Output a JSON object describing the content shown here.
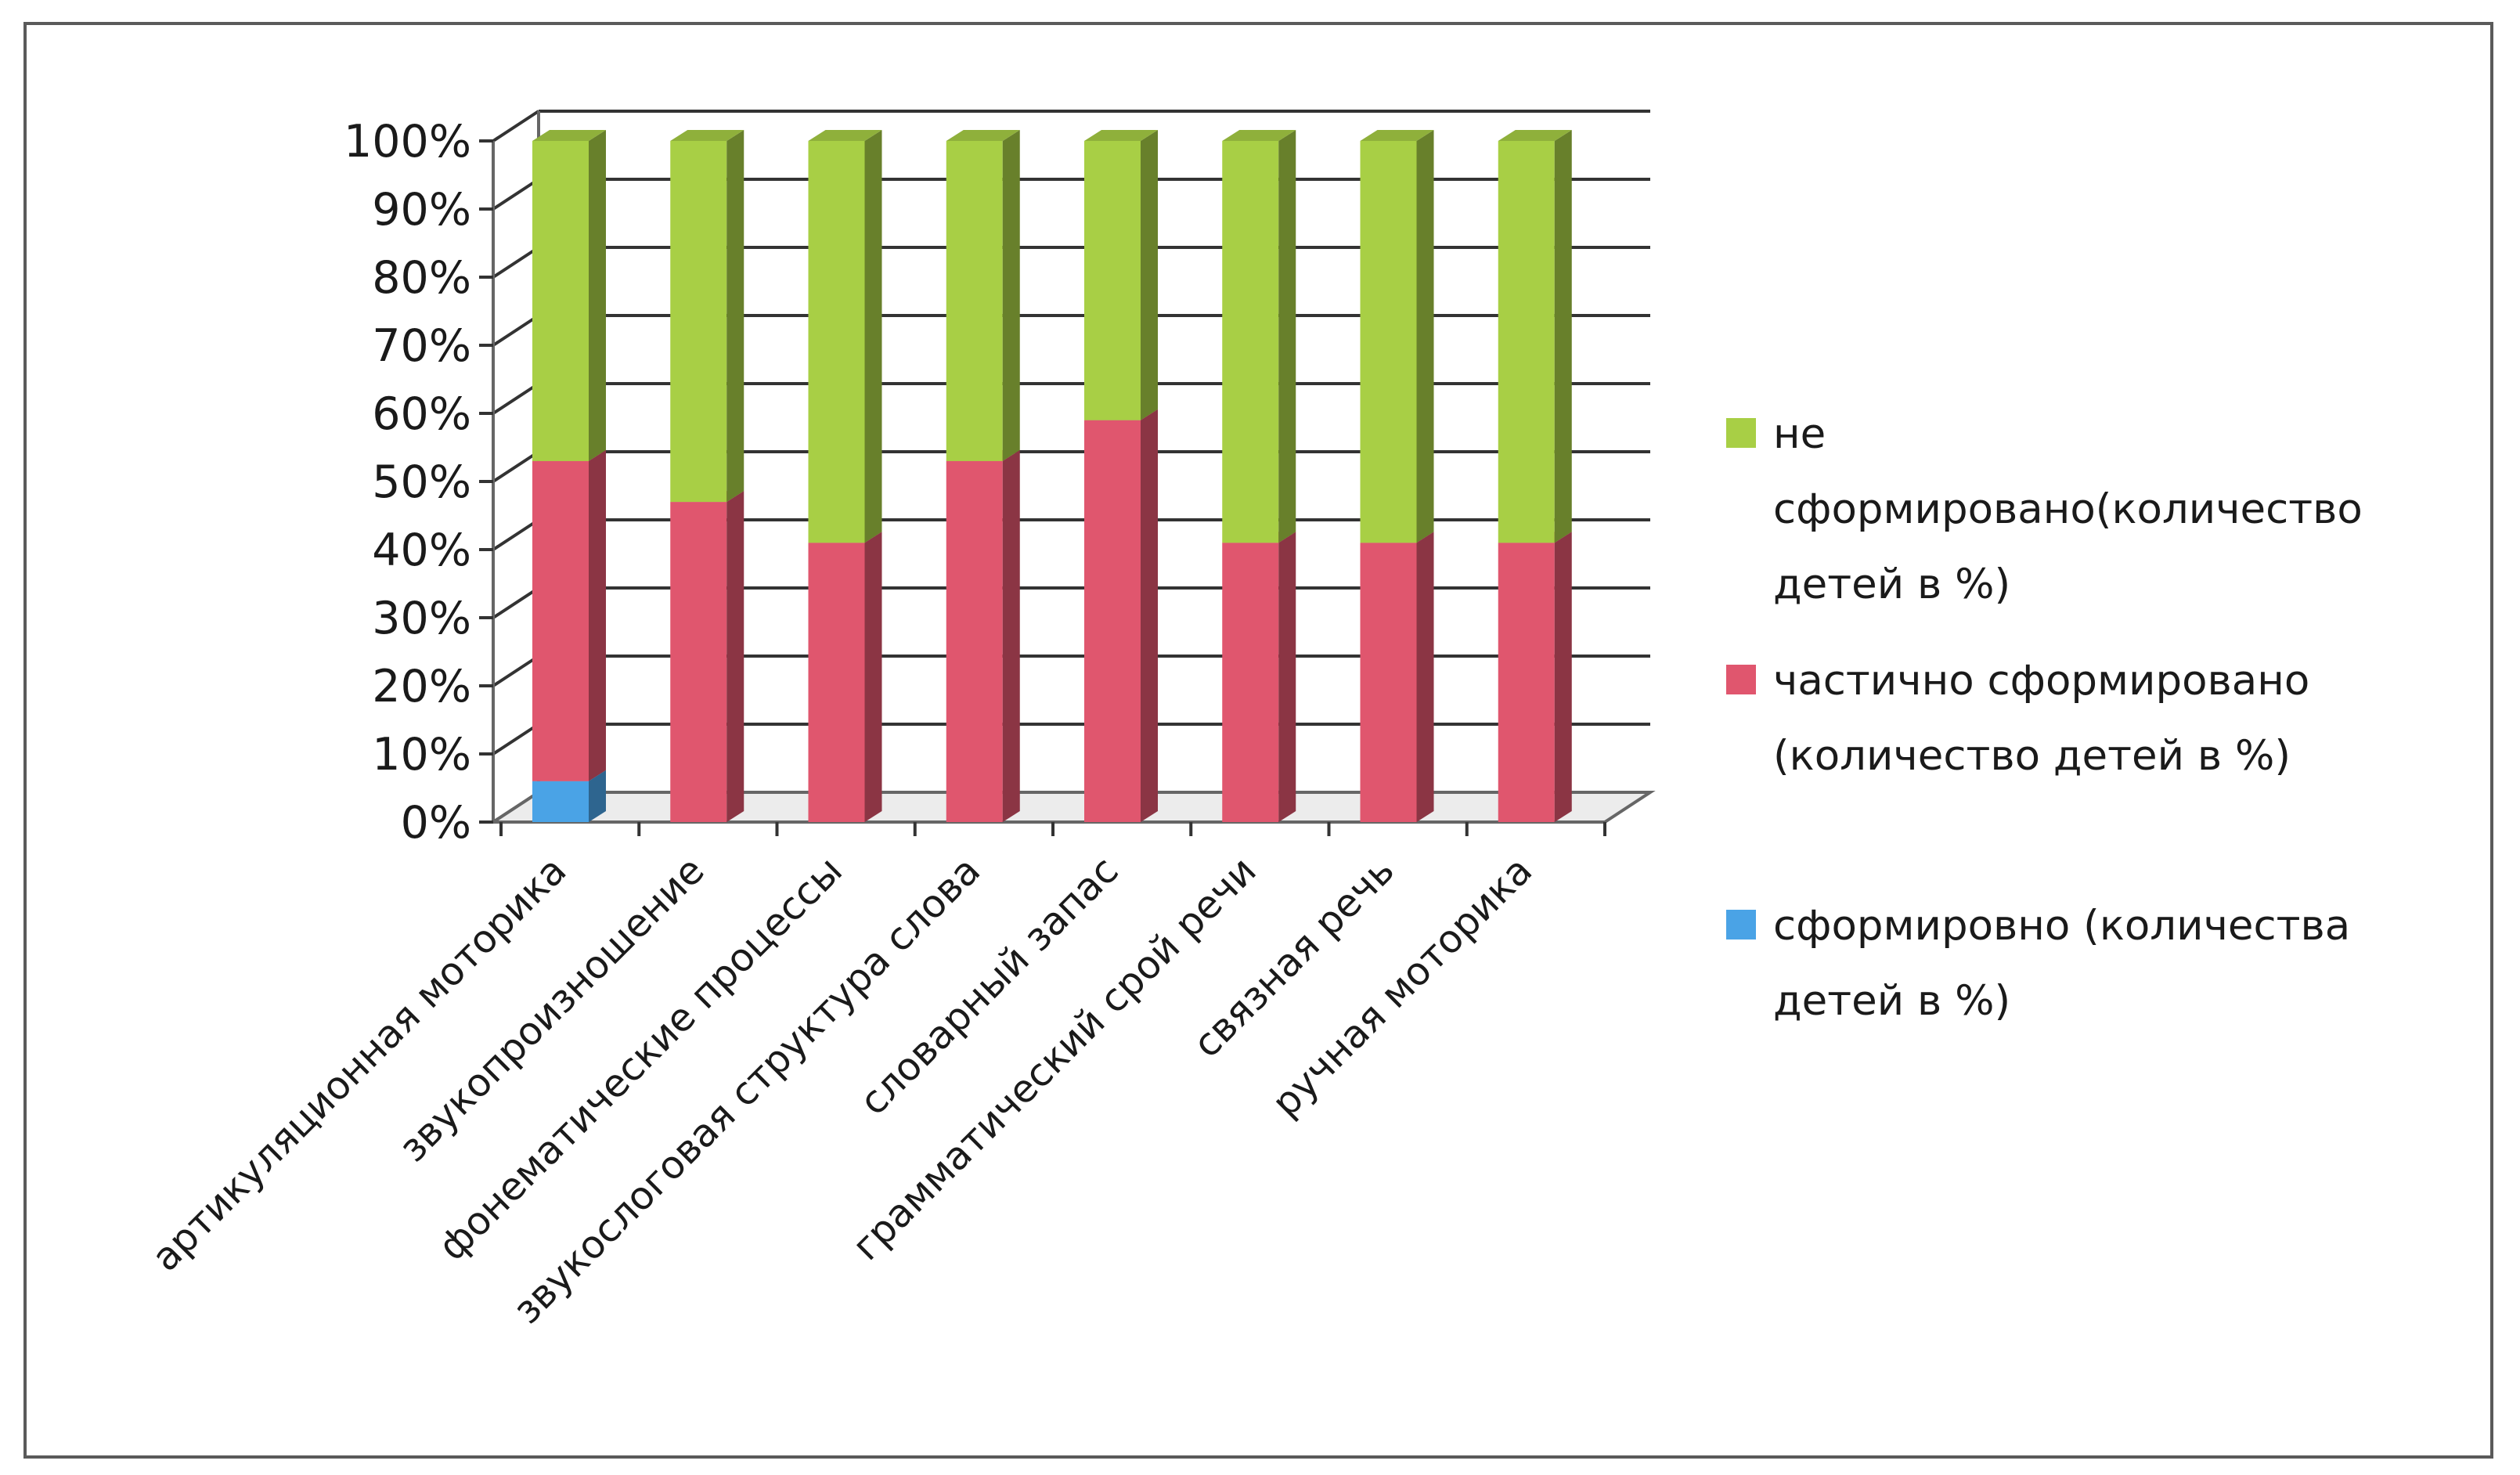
{
  "chart_data": {
    "type": "bar",
    "stacked": true,
    "stacked_percent": true,
    "three_d": true,
    "categories": [
      "артикуляционная моторика",
      "звукопроизношение",
      "фонематические процессы",
      "звукослоговая структура слова",
      "словарный запас",
      "грамматический срой речи",
      "связная речь",
      "ручная моторика"
    ],
    "series": [
      {
        "name": "сформировно (количества детей в %)",
        "color": "#4aa3e6",
        "values": [
          6,
          0,
          0,
          0,
          0,
          0,
          0,
          0
        ]
      },
      {
        "name": "частично сформировано (количество детей в %)",
        "color": "#e0566e",
        "values": [
          47,
          47,
          41,
          53,
          59,
          41,
          41,
          41
        ]
      },
      {
        "name": "не сформировано(количество детей в %)",
        "color": "#a8cf45",
        "values": [
          47,
          53,
          59,
          47,
          41,
          59,
          59,
          59
        ]
      }
    ],
    "y_ticks": [
      "0%",
      "10%",
      "20%",
      "30%",
      "40%",
      "50%",
      "60%",
      "70%",
      "80%",
      "90%",
      "100%"
    ],
    "ylim": [
      0,
      100
    ],
    "grid": true,
    "legend_position": "right",
    "legend": [
      {
        "lines": [
          "не",
          "сформировано(количество",
          "детей в %)"
        ],
        "color": "#a8cf45"
      },
      {
        "lines": [
          "частично сформировано",
          "(количество детей в %)"
        ],
        "color": "#e0566e"
      },
      {
        "lines": [
          "сформировно (количества",
          "детей в %)"
        ],
        "color": "#4aa3e6"
      }
    ]
  }
}
